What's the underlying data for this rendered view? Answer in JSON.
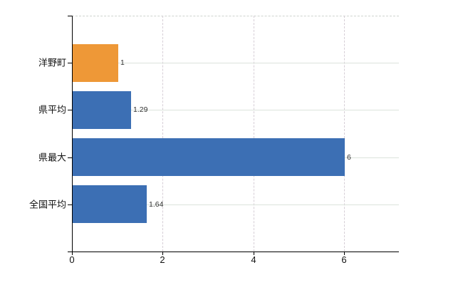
{
  "chart_data": {
    "type": "bar",
    "orientation": "horizontal",
    "title": "",
    "xlabel": "",
    "ylabel": "",
    "categories": [
      "洋野町",
      "県平均",
      "県最大",
      "全国平均"
    ],
    "values": [
      1,
      1.29,
      6,
      1.64
    ],
    "value_labels": [
      "1",
      "1.29",
      "6",
      "1.64"
    ],
    "bar_colors": [
      "#EE9837",
      "#3C6FB4",
      "#3C6FB4",
      "#3C6FB4"
    ],
    "x_ticks": [
      0,
      2,
      4,
      6
    ],
    "x_tick_labels": [
      "0",
      "2",
      "4",
      "6"
    ],
    "xlim": [
      0,
      7.2
    ],
    "grid": true,
    "legend": false
  },
  "colors": {
    "highlight_bar": "#EE9837",
    "default_bar": "#3C6FB4",
    "axis": "#000000",
    "h_gridline": "#dce3dc",
    "v_gridline": "#d6ced6",
    "label_text": "#111111",
    "value_text": "#333333",
    "background": "#ffffff"
  }
}
